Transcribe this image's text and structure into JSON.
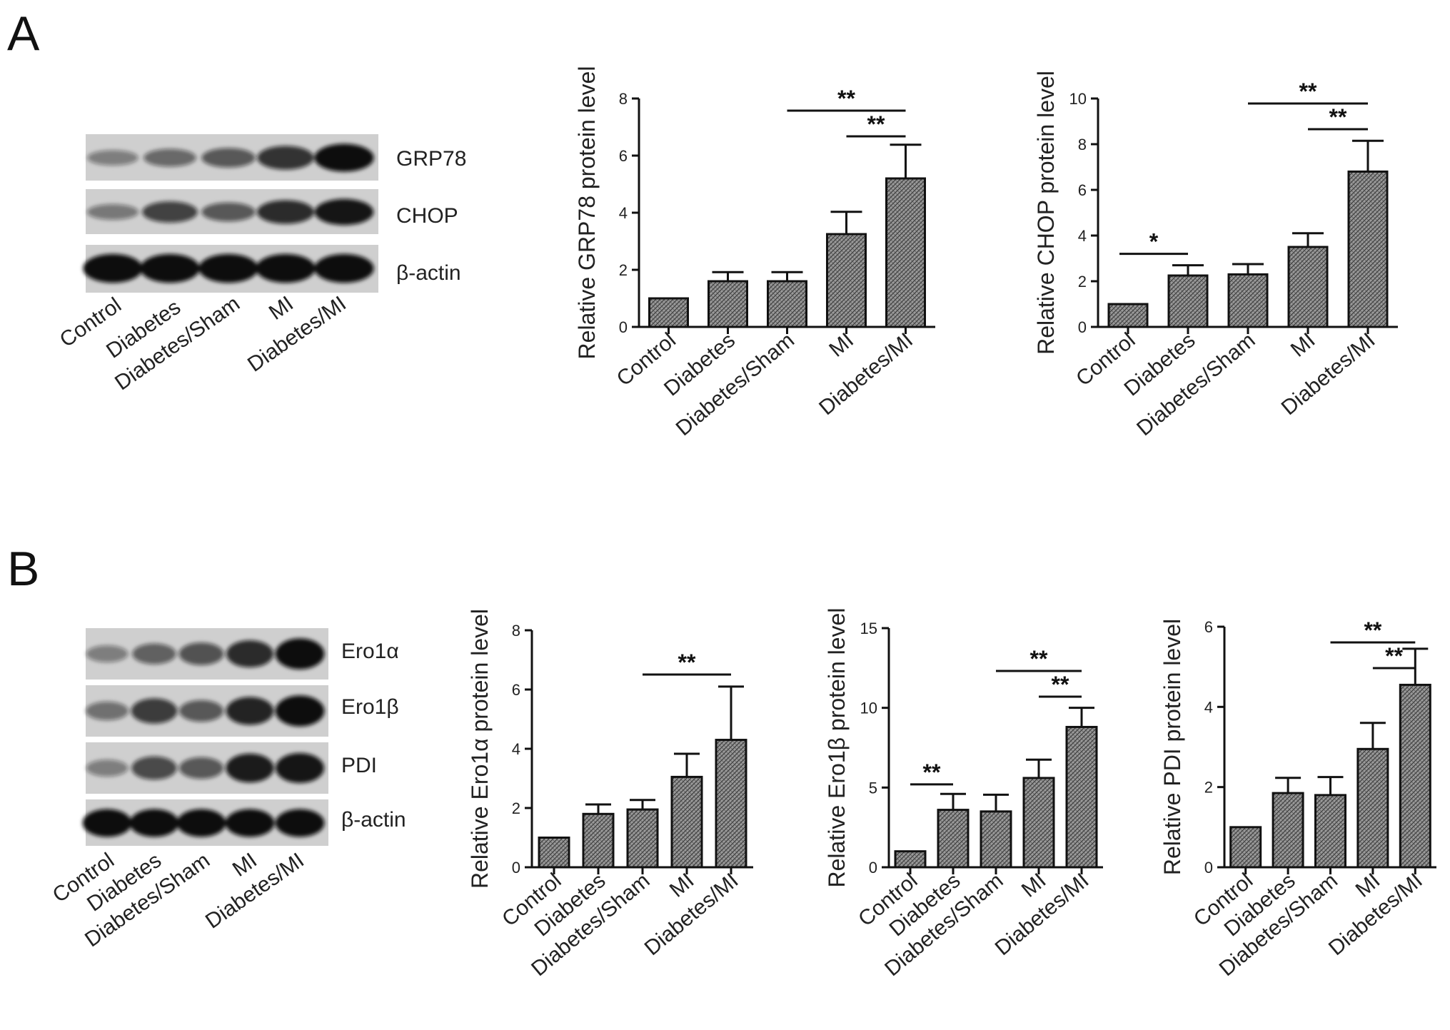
{
  "panels": {
    "A": {
      "letter": "A",
      "blot_labels": [
        "GRP78",
        "CHOP",
        "β-actin"
      ]
    },
    "B": {
      "letter": "B",
      "blot_labels": [
        "Ero1α",
        "Ero1β",
        "PDI",
        "β-actin"
      ]
    }
  },
  "blot_lanes": [
    "Control",
    "Diabetes",
    "Diabetes/Sham",
    "MI",
    "Diabetes/MI"
  ],
  "colors": {
    "bar_fill": "#8f8f8f",
    "axis": "#111111",
    "blot_background": "#cfcfcf",
    "band": "#111111"
  },
  "chart_data": [
    {
      "id": "grp78",
      "panel": "A",
      "type": "bar",
      "ylabel": "Relative GRP78 protein level",
      "categories": [
        "Control",
        "Diabetes",
        "Diabetes/Sham",
        "MI",
        "Diabetes/MI"
      ],
      "values": [
        1.0,
        1.6,
        1.6,
        3.25,
        5.2
      ],
      "errors": [
        0,
        0.32,
        0.32,
        0.78,
        1.18
      ],
      "ylim": [
        0,
        8
      ],
      "yticks": [
        "0",
        "2",
        "4",
        "6",
        "8"
      ],
      "significance": [
        {
          "from": 2,
          "to": 4,
          "label": "**"
        },
        {
          "from": 3,
          "to": 4,
          "label": "**"
        }
      ]
    },
    {
      "id": "chop",
      "panel": "A",
      "type": "bar",
      "ylabel": "Relative CHOP protein level",
      "categories": [
        "Control",
        "Diabetes",
        "Diabetes/Sham",
        "MI",
        "Diabetes/MI"
      ],
      "values": [
        1.0,
        2.25,
        2.3,
        3.5,
        6.8
      ],
      "errors": [
        0,
        0.45,
        0.45,
        0.6,
        1.35
      ],
      "ylim": [
        0,
        10
      ],
      "yticks": [
        "0",
        "2",
        "4",
        "6",
        "8",
        "10"
      ],
      "significance": [
        {
          "from": 0,
          "to": 1,
          "label": "*"
        },
        {
          "from": 2,
          "to": 4,
          "label": "**"
        },
        {
          "from": 3,
          "to": 4,
          "label": "**"
        }
      ]
    },
    {
      "id": "ero1a",
      "panel": "B",
      "type": "bar",
      "ylabel": "Relative Ero1α  protein level",
      "categories": [
        "Control",
        "Diabetes",
        "Diabetes/Sham",
        "MI",
        "Diabetes/MI"
      ],
      "values": [
        1.0,
        1.8,
        1.95,
        3.05,
        4.3
      ],
      "errors": [
        0,
        0.32,
        0.32,
        0.78,
        1.8
      ],
      "ylim": [
        0,
        8
      ],
      "yticks": [
        "0",
        "2",
        "4",
        "6",
        "8"
      ],
      "significance": [
        {
          "from": 2,
          "to": 4,
          "label": "**"
        }
      ]
    },
    {
      "id": "ero1b",
      "panel": "B",
      "type": "bar",
      "ylabel": "Relative Ero1β  protein level",
      "categories": [
        "Control",
        "Diabetes",
        "Diabetes/Sham",
        "MI",
        "Diabetes/MI"
      ],
      "values": [
        1.0,
        3.6,
        3.5,
        5.6,
        8.8
      ],
      "errors": [
        0,
        1.0,
        1.05,
        1.15,
        1.2
      ],
      "ylim": [
        0,
        15
      ],
      "yticks": [
        "0",
        "5",
        "10",
        "15"
      ],
      "significance": [
        {
          "from": 0,
          "to": 1,
          "label": "**"
        },
        {
          "from": 2,
          "to": 4,
          "label": "**"
        },
        {
          "from": 3,
          "to": 4,
          "label": "**"
        }
      ]
    },
    {
      "id": "pdi",
      "panel": "B",
      "type": "bar",
      "ylabel": "Relative PDI protein level",
      "categories": [
        "Control",
        "Diabetes",
        "Diabetes/Sham",
        "MI",
        "Diabetes/MI"
      ],
      "values": [
        1.0,
        1.85,
        1.8,
        2.95,
        4.55
      ],
      "errors": [
        0,
        0.38,
        0.45,
        0.65,
        0.9
      ],
      "ylim": [
        0,
        6
      ],
      "yticks": [
        "0",
        "2",
        "4",
        "6"
      ],
      "significance": [
        {
          "from": 2,
          "to": 4,
          "label": "**"
        },
        {
          "from": 3,
          "to": 4,
          "label": "**"
        }
      ]
    }
  ]
}
